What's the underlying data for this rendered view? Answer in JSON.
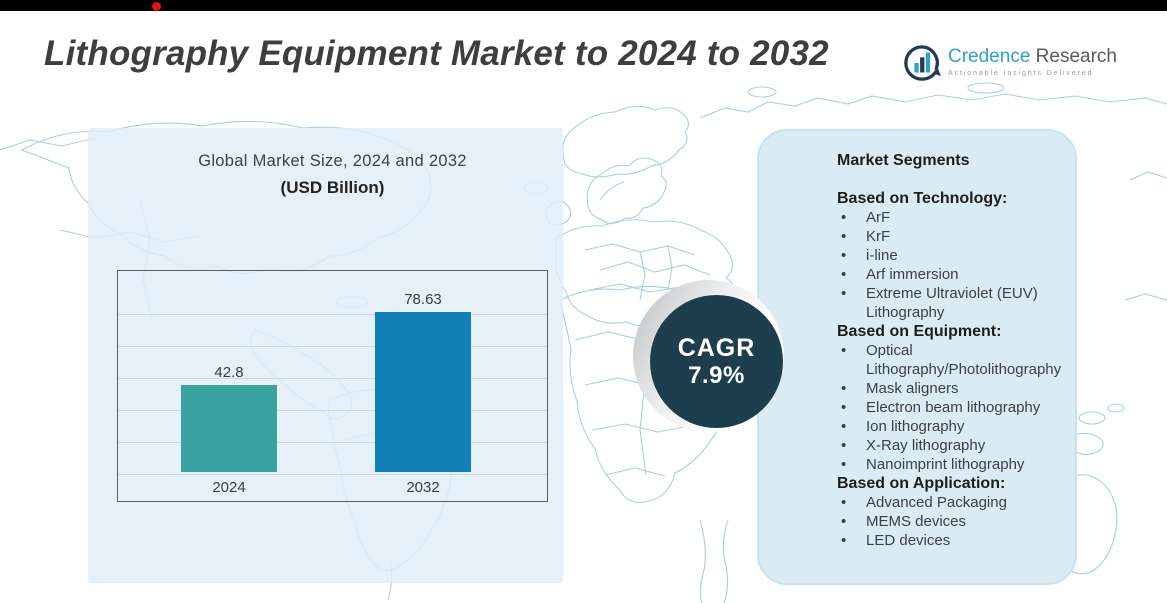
{
  "header": {
    "title": "Lithography Equipment Market to 2024 to 2032"
  },
  "logo": {
    "brand_primary": "Credence",
    "brand_secondary": "Research",
    "tagline": "Actionable Insights Delivered",
    "brand_color": "#2ba2c8",
    "text_color": "#58595b"
  },
  "chart_panel": {
    "title_line1": "Global Market Size, 2024 and 2032",
    "title_line2": "(USD Billion)"
  },
  "chart_data": {
    "type": "bar",
    "title": "Global Market Size, 2024 and 2032",
    "subtitle": "(USD Billion)",
    "categories": [
      "2024",
      "2032"
    ],
    "values": [
      42.8,
      78.63
    ],
    "value_labels": [
      "42.8",
      "78.63"
    ],
    "bar_colors": [
      "#38a3a0",
      "#1181b5"
    ],
    "ylim": [
      0,
      100
    ],
    "grid": true,
    "legend_position": "none",
    "xlabel": "",
    "ylabel": ""
  },
  "cagr_badge": {
    "label": "CAGR",
    "value": "7.9%",
    "bg_color": "#1d3e4d",
    "text_color": "#ffffff"
  },
  "segments_panel": {
    "title": "Market Segments",
    "groups": [
      {
        "heading": "Based on Technology:",
        "items": [
          "ArF",
          "KrF",
          "i-line",
          "Arf immersion",
          "Extreme Ultraviolet (EUV) Lithography"
        ]
      },
      {
        "heading": "Based on Equipment:",
        "items": [
          "Optical Lithography/Photolithography",
          "Mask aligners",
          "Electron beam lithography",
          "Ion lithography",
          "X-Ray lithography",
          "Nanoimprint lithography"
        ]
      },
      {
        "heading": "Based on Application:",
        "items": [
          "Advanced Packaging",
          "MEMS devices",
          "LED devices"
        ]
      }
    ]
  },
  "colors": {
    "chart_panel_bg": "#e7eff8",
    "segments_bg": "#dbebf4",
    "segments_border": "#c6e3f0",
    "map_line": "#aacfe1",
    "topbar": "#000000",
    "red_dot": "#e11212"
  }
}
